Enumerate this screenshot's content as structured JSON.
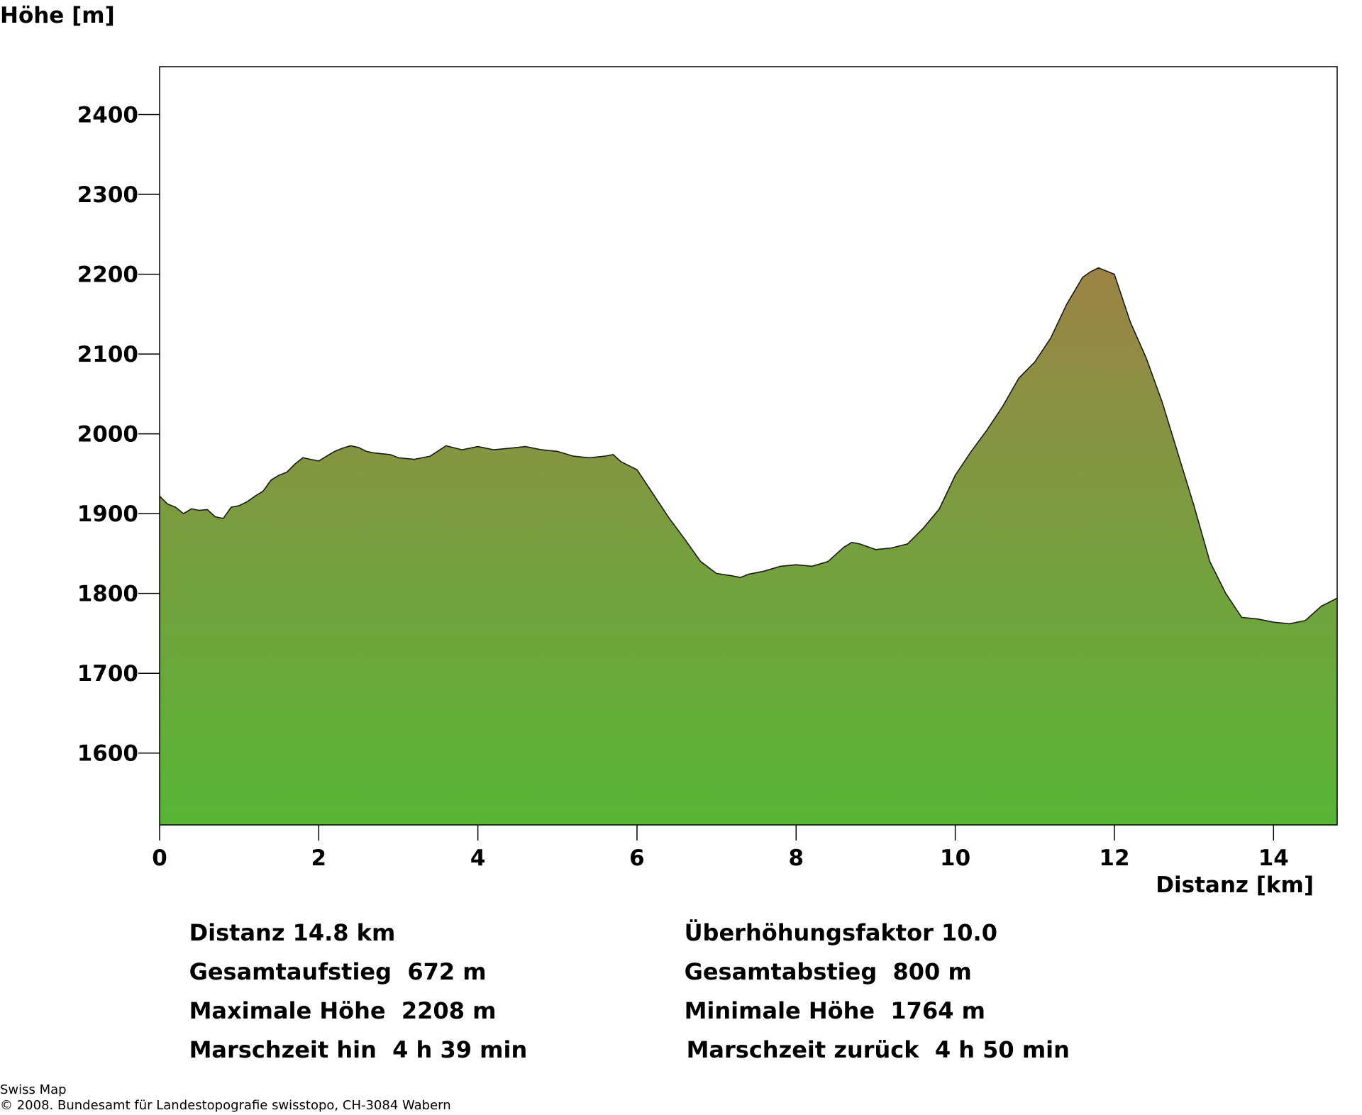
{
  "chart_data": {
    "type": "area",
    "ylabel": "Höhe [m]",
    "xlabel": "Distanz [km]",
    "xlim": [
      0,
      14.8
    ],
    "ylim": [
      1510,
      2460
    ],
    "x_ticks": [
      0,
      2,
      4,
      6,
      8,
      10,
      12,
      14
    ],
    "y_ticks": [
      1600,
      1700,
      1800,
      1900,
      2000,
      2100,
      2200,
      2300,
      2400
    ],
    "grid": false,
    "fill_colors": {
      "bottom": "#58b535",
      "middle": "#7a9c3f",
      "top": "#9c8345"
    },
    "line_color": "#1a1a1a",
    "series": [
      {
        "x": [
          0,
          0.1,
          0.2,
          0.3,
          0.4,
          0.5,
          0.6,
          0.7,
          0.8,
          0.9,
          1.0,
          1.1,
          1.2,
          1.3,
          1.4,
          1.5,
          1.6,
          1.7,
          1.8,
          1.9,
          2.0,
          2.1,
          2.2,
          2.3,
          2.4,
          2.5,
          2.6,
          2.7,
          2.8,
          2.9,
          3.0,
          3.2,
          3.4,
          3.6,
          3.8,
          4.0,
          4.2,
          4.4,
          4.6,
          4.8,
          5.0,
          5.2,
          5.4,
          5.6,
          5.7,
          5.8,
          6.0,
          6.2,
          6.4,
          6.6,
          6.8,
          7.0,
          7.2,
          7.3,
          7.4,
          7.6,
          7.8,
          8.0,
          8.2,
          8.4,
          8.6,
          8.7,
          8.8,
          9.0,
          9.2,
          9.4,
          9.6,
          9.8,
          10.0,
          10.2,
          10.4,
          10.6,
          10.8,
          11.0,
          11.2,
          11.4,
          11.6,
          11.7,
          11.8,
          11.9,
          12.0,
          12.2,
          12.4,
          12.6,
          12.8,
          13.0,
          13.2,
          13.4,
          13.6,
          13.8,
          14.0,
          14.2,
          14.4,
          14.6,
          14.8
        ],
        "y": [
          1922,
          1912,
          1908,
          1900,
          1906,
          1904,
          1905,
          1896,
          1894,
          1908,
          1910,
          1915,
          1922,
          1928,
          1942,
          1948,
          1952,
          1962,
          1970,
          1968,
          1966,
          1972,
          1978,
          1982,
          1985,
          1983,
          1978,
          1976,
          1975,
          1974,
          1970,
          1968,
          1972,
          1985,
          1980,
          1984,
          1980,
          1982,
          1984,
          1980,
          1978,
          1972,
          1970,
          1972,
          1974,
          1965,
          1955,
          1925,
          1895,
          1868,
          1840,
          1825,
          1822,
          1820,
          1824,
          1828,
          1834,
          1836,
          1834,
          1840,
          1858,
          1864,
          1862,
          1855,
          1857,
          1862,
          1882,
          1906,
          1948,
          1978,
          2005,
          2035,
          2070,
          2090,
          2120,
          2162,
          2196,
          2203,
          2208,
          2204,
          2200,
          2140,
          2095,
          2040,
          1975,
          1910,
          1840,
          1800,
          1770,
          1768,
          1764,
          1762,
          1766,
          1784,
          1794
        ]
      }
    ]
  },
  "stats": {
    "left": [
      {
        "label": "Distanz",
        "value": "14.8 km"
      },
      {
        "label": "Gesamtaufstieg",
        "value": "672 m"
      },
      {
        "label": "Maximale Höhe",
        "value": "2208 m"
      },
      {
        "label": "Marschzeit hin",
        "value": "4 h 39 min"
      }
    ],
    "right": [
      {
        "label": "Überhöhungsfaktor",
        "value": "10.0"
      },
      {
        "label": "Gesamtabstieg",
        "value": "800 m"
      },
      {
        "label": "Minimale Höhe",
        "value": "1764 m"
      },
      {
        "label": "Marschzeit zurück",
        "value": "4 h 50 min"
      }
    ]
  },
  "footer": {
    "line1": "Swiss Map",
    "line2": "© 2008. Bundesamt für Landestopografie swisstopo, CH-3084 Wabern"
  }
}
